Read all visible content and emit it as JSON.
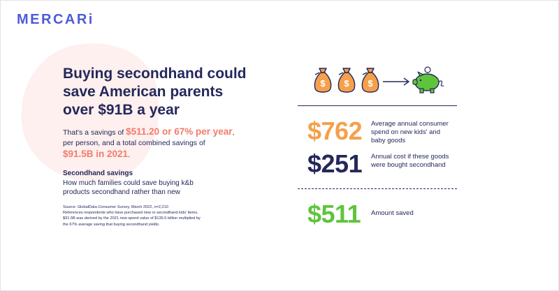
{
  "brand": {
    "logo": "MERCARi"
  },
  "headline": "Buying secondhand could save American parents over $91B a year",
  "savings": {
    "prefix": "That's a savings of ",
    "highlight1": "$511.20 or 67% per year",
    "middle": ", per person, and a total combined savings of",
    "highlight2": "$91.5B in 2021",
    "suffix": "."
  },
  "section": {
    "title": "Secondhand savings",
    "description": "How much families could save buying k&b products secondhand rather than new"
  },
  "source_lines": [
    "Source: GlobalData Consumer Survey, March 2022, n=2,210",
    "References respondents who have purchased new or secondhand kids' items.",
    "$91.5B was derived by the 2021 new spend value of $136.5 billion multiplied by",
    "the 67% average saving that buying secondhand yields."
  ],
  "illustration": {
    "icons": [
      "money-bag-icon",
      "money-bag-icon",
      "money-bag-icon",
      "arrow-right-icon",
      "piggy-bank-icon"
    ]
  },
  "stats": [
    {
      "value": "$762",
      "label": "Average annual consumer spend on new kids' and baby goods",
      "color": "#f5a04a"
    },
    {
      "value": "$251",
      "label": "Annual cost if these goods were bought secondhand",
      "color": "#24285b"
    },
    {
      "value": "$511",
      "label": "Amount saved",
      "color": "#5fc43c"
    }
  ],
  "colors": {
    "navy": "#24285b",
    "brand_blue": "#4d5bd9",
    "coral": "#f27c6b",
    "orange": "#f5a04a",
    "green": "#5fc43c"
  }
}
